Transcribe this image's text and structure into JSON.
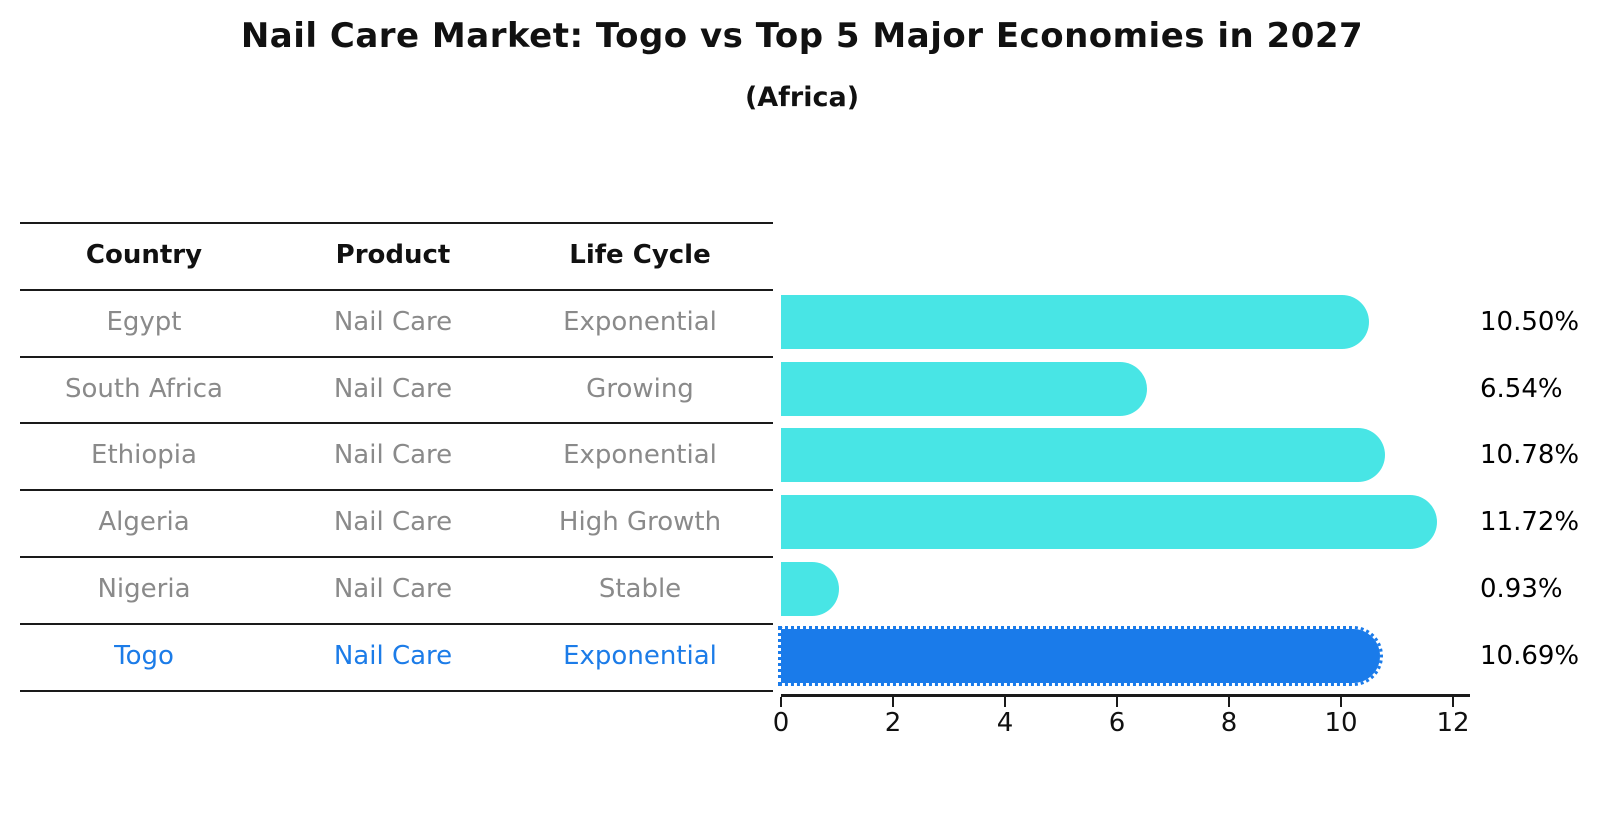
{
  "title": "Nail Care Market: Togo vs Top 5 Major Economies in 2027",
  "subtitle": "(Africa)",
  "table": {
    "headers": [
      "Country",
      "Product",
      "Life Cycle"
    ],
    "rows": [
      {
        "country": "Egypt",
        "product": "Nail Care",
        "life_cycle": "Exponential",
        "highlight": false
      },
      {
        "country": "South Africa",
        "product": "Nail Care",
        "life_cycle": "Growing",
        "highlight": false
      },
      {
        "country": "Ethiopia",
        "product": "Nail Care",
        "life_cycle": "Exponential",
        "highlight": false
      },
      {
        "country": "Algeria",
        "product": "Nail Care",
        "life_cycle": "High Growth",
        "highlight": false
      },
      {
        "country": "Nigeria",
        "product": "Nail Care",
        "life_cycle": "Stable",
        "highlight": false
      },
      {
        "country": "Togo",
        "product": "Nail Care",
        "life_cycle": "Exponential",
        "highlight": true
      }
    ]
  },
  "chart_data": {
    "type": "bar",
    "orientation": "horizontal",
    "categories": [
      "Egypt",
      "South Africa",
      "Ethiopia",
      "Algeria",
      "Nigeria",
      "Togo"
    ],
    "values": [
      10.5,
      6.54,
      10.78,
      11.72,
      0.93,
      10.69
    ],
    "value_labels": [
      "10.50%",
      "6.54%",
      "10.78%",
      "11.72%",
      "0.93%",
      "10.69%"
    ],
    "xticks": [
      "0",
      "2",
      "4",
      "6",
      "8",
      "10",
      "12"
    ],
    "xtick_values": [
      0,
      2,
      4,
      6,
      8,
      10,
      12
    ],
    "xlim": [
      0,
      12.3
    ],
    "grid": false,
    "legend": "none",
    "bar_color": "#48e5e5",
    "highlight_color": "#1a7bea",
    "highlight_text_color": "#1c7ce8",
    "highlight_index": 5,
    "highlight_style": "dotted-outline"
  }
}
